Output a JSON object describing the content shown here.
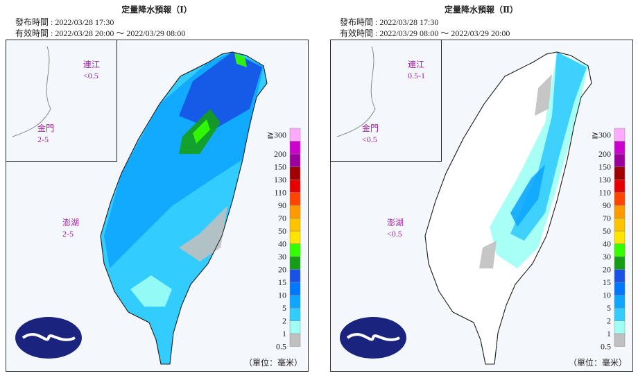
{
  "panels": [
    {
      "title": "定量降水預報（Ⅰ）",
      "issued": "發布時間 : 2022/03/28 17:30",
      "valid": "有效時間 : 2022/03/28 20:00 ～ 2022/03/29 08:00",
      "matsu": {
        "name": "連江",
        "value": "<0.5"
      },
      "kinmen": {
        "name": "金門",
        "value": "2-5"
      },
      "penghu": {
        "name": "澎湖",
        "value": "2-5"
      },
      "unit": "（單位：毫米）"
    },
    {
      "title": "定量降水預報（Ⅱ）",
      "issued": "發布時間 : 2022/03/28 17:30",
      "valid": "有效時間 : 2022/03/29 08:00 ～ 2022/03/29 20:00",
      "matsu": {
        "name": "連江",
        "value": "0.5-1"
      },
      "kinmen": {
        "name": "金門",
        "value": "<0.5"
      },
      "penghu": {
        "name": "澎湖",
        "value": "<0.5"
      },
      "unit": "（單位：毫米）"
    }
  ],
  "legend": {
    "labels": [
      "0.5",
      "1",
      "2",
      "5",
      "10",
      "15",
      "20",
      "30",
      "40",
      "50",
      "70",
      "90",
      "110",
      "130",
      "150",
      "200",
      "≧300"
    ],
    "colors": [
      "#c0c0c0",
      "#9ffff5",
      "#33ccff",
      "#0ea6ff",
      "#0077ff",
      "#1751e6",
      "#159e15",
      "#33ff00",
      "#ffe400",
      "#ffc400",
      "#ff9900",
      "#ff4400",
      "#e60000",
      "#a00000",
      "#9c009c",
      "#cc00cc",
      "#ffaaff"
    ]
  }
}
